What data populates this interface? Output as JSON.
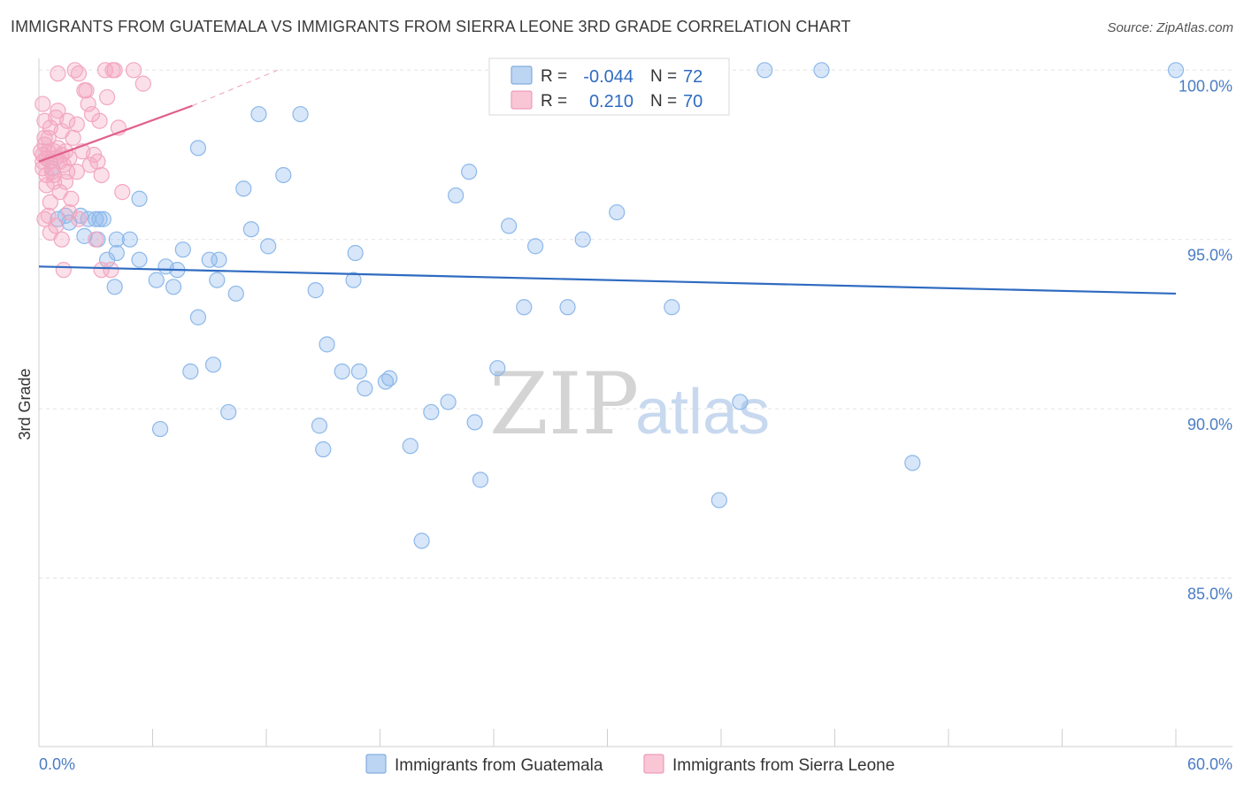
{
  "chart_data": {
    "type": "scatter",
    "title": "IMMIGRANTS FROM GUATEMALA VS IMMIGRANTS FROM SIERRA LEONE 3RD GRADE CORRELATION CHART",
    "source": "Source: ZipAtlas.com",
    "ylabel": "3rd Grade",
    "xlabel": "",
    "xlim": [
      0,
      60
    ],
    "ylim": [
      80.5,
      100.9
    ],
    "x_tick_labels": [
      "0.0%",
      "60.0%"
    ],
    "y_ticks": [
      100,
      95,
      90,
      85
    ],
    "y_tick_labels": [
      "100.0%",
      "95.0%",
      "90.0%",
      "85.0%"
    ],
    "watermark": {
      "zip": "ZIP",
      "atlas": "atlas"
    },
    "legend_stats": [
      {
        "r_label": "R =",
        "r_value": "-0.044",
        "n_label": "N =",
        "n_value": "72"
      },
      {
        "r_label": "R =",
        "r_value": "0.210",
        "n_label": "N =",
        "n_value": "70"
      }
    ],
    "series": [
      {
        "name": "Immigrants from Guatemala",
        "color": "#8db8ea",
        "line_color": "#2f6bc1",
        "trend": {
          "x": [
            0,
            60
          ],
          "y": [
            94.2,
            93.4
          ]
        },
        "points": [
          [
            0.7,
            97.1
          ],
          [
            1.0,
            95.6
          ],
          [
            1.4,
            95.7
          ],
          [
            1.6,
            95.5
          ],
          [
            2.2,
            95.7
          ],
          [
            2.6,
            95.6
          ],
          [
            3.0,
            95.6
          ],
          [
            3.2,
            95.6
          ],
          [
            2.4,
            95.1
          ],
          [
            3.1,
            95.0
          ],
          [
            4.1,
            95.0
          ],
          [
            4.8,
            95.0
          ],
          [
            3.6,
            94.4
          ],
          [
            4.1,
            94.6
          ],
          [
            5.3,
            94.4
          ],
          [
            6.7,
            94.2
          ],
          [
            4.0,
            93.6
          ],
          [
            6.2,
            93.8
          ],
          [
            7.1,
            93.6
          ],
          [
            7.3,
            94.1
          ],
          [
            7.6,
            94.7
          ],
          [
            8.4,
            92.7
          ],
          [
            9.0,
            94.4
          ],
          [
            9.5,
            94.4
          ],
          [
            9.4,
            93.8
          ],
          [
            10.4,
            93.4
          ],
          [
            11.2,
            95.3
          ],
          [
            12.1,
            94.8
          ],
          [
            12.9,
            96.9
          ],
          [
            14.6,
            93.5
          ],
          [
            15.2,
            91.9
          ],
          [
            16.6,
            93.8
          ],
          [
            16.7,
            94.6
          ],
          [
            5.3,
            96.2
          ],
          [
            8.4,
            97.7
          ],
          [
            10.8,
            96.5
          ],
          [
            11.6,
            98.7
          ],
          [
            13.8,
            98.7
          ],
          [
            8.0,
            91.1
          ],
          [
            9.2,
            91.3
          ],
          [
            10.0,
            89.9
          ],
          [
            6.4,
            89.4
          ],
          [
            14.8,
            89.5
          ],
          [
            15.0,
            88.8
          ],
          [
            16.0,
            91.1
          ],
          [
            16.9,
            91.1
          ],
          [
            17.2,
            90.6
          ],
          [
            18.3,
            90.8
          ],
          [
            18.5,
            90.9
          ],
          [
            19.6,
            88.9
          ],
          [
            20.2,
            86.1
          ],
          [
            20.7,
            89.9
          ],
          [
            21.6,
            90.2
          ],
          [
            22.0,
            96.3
          ],
          [
            22.7,
            97.0
          ],
          [
            23.0,
            89.6
          ],
          [
            23.3,
            87.9
          ],
          [
            24.2,
            91.2
          ],
          [
            24.8,
            95.4
          ],
          [
            25.6,
            93.0
          ],
          [
            26.2,
            94.8
          ],
          [
            27.9,
            93.0
          ],
          [
            28.7,
            95.0
          ],
          [
            30.5,
            95.8
          ],
          [
            33.4,
            93.0
          ],
          [
            35.9,
            87.3
          ],
          [
            37.0,
            90.2
          ],
          [
            38.3,
            100.0
          ],
          [
            41.3,
            100.0
          ],
          [
            46.1,
            88.4
          ],
          [
            60.0,
            100.0
          ],
          [
            3.4,
            95.6
          ]
        ]
      },
      {
        "name": "Immigrants from Sierra Leone",
        "color": "#f3a7c0",
        "line_color": "#e0608e",
        "trend": {
          "x": [
            0,
            8.1
          ],
          "y": [
            97.3,
            98.95
          ]
        },
        "trend_extension": {
          "x": [
            8.1,
            12.6
          ],
          "y": [
            98.95,
            100.0
          ]
        },
        "points": [
          [
            0.2,
            97.5
          ],
          [
            0.3,
            97.8
          ],
          [
            0.4,
            97.4
          ],
          [
            0.5,
            97.6
          ],
          [
            0.6,
            97.3
          ],
          [
            0.7,
            97.0
          ],
          [
            0.8,
            97.6
          ],
          [
            0.9,
            97.4
          ],
          [
            1.0,
            97.7
          ],
          [
            1.1,
            97.3
          ],
          [
            1.2,
            97.5
          ],
          [
            1.3,
            97.2
          ],
          [
            1.4,
            97.6
          ],
          [
            1.5,
            97.0
          ],
          [
            1.6,
            97.4
          ],
          [
            0.3,
            98.0
          ],
          [
            0.6,
            98.3
          ],
          [
            0.9,
            98.6
          ],
          [
            1.2,
            98.2
          ],
          [
            1.5,
            98.5
          ],
          [
            1.8,
            98.0
          ],
          [
            2.0,
            98.4
          ],
          [
            0.4,
            96.6
          ],
          [
            0.8,
            96.9
          ],
          [
            1.1,
            96.4
          ],
          [
            1.4,
            96.7
          ],
          [
            1.7,
            96.2
          ],
          [
            0.5,
            95.7
          ],
          [
            0.9,
            95.4
          ],
          [
            1.2,
            95.0
          ],
          [
            1.6,
            95.8
          ],
          [
            2.1,
            95.6
          ],
          [
            2.3,
            97.6
          ],
          [
            2.5,
            99.4
          ],
          [
            2.6,
            99.0
          ],
          [
            2.7,
            97.2
          ],
          [
            2.9,
            97.5
          ],
          [
            3.3,
            96.9
          ],
          [
            3.0,
            95.0
          ],
          [
            3.2,
            98.5
          ],
          [
            3.6,
            99.2
          ],
          [
            4.2,
            98.3
          ],
          [
            3.8,
            94.1
          ],
          [
            4.4,
            96.4
          ],
          [
            5.0,
            100.0
          ],
          [
            5.5,
            99.6
          ],
          [
            3.5,
            100.0
          ],
          [
            3.9,
            100.0
          ],
          [
            4.0,
            100.0
          ],
          [
            1.9,
            100.0
          ],
          [
            1.0,
            99.9
          ],
          [
            2.1,
            99.9
          ],
          [
            0.2,
            99.0
          ],
          [
            0.3,
            98.5
          ],
          [
            0.5,
            98.0
          ],
          [
            0.2,
            97.1
          ],
          [
            0.4,
            96.9
          ],
          [
            0.6,
            96.1
          ],
          [
            0.3,
            95.6
          ],
          [
            0.6,
            95.2
          ],
          [
            1.3,
            94.1
          ],
          [
            2.0,
            97.0
          ],
          [
            0.1,
            97.6
          ],
          [
            0.2,
            97.3
          ],
          [
            0.8,
            96.7
          ],
          [
            1.0,
            98.8
          ],
          [
            2.4,
            99.4
          ],
          [
            2.8,
            98.7
          ],
          [
            3.1,
            97.3
          ],
          [
            3.3,
            94.1
          ]
        ]
      }
    ]
  }
}
